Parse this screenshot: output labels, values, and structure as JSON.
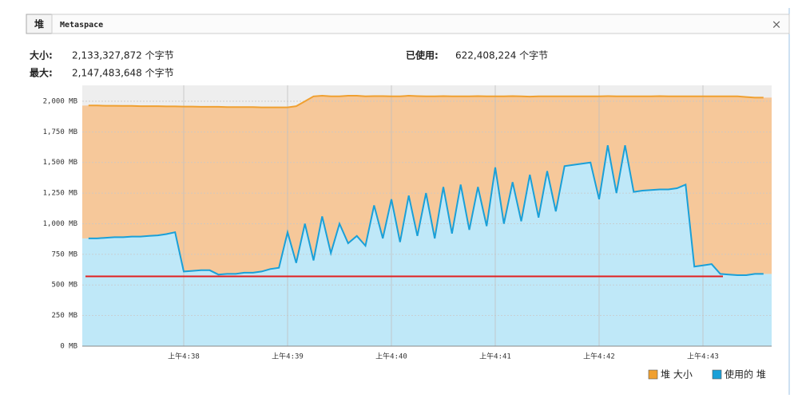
{
  "tabs": [
    "堆",
    "Metaspace"
  ],
  "close": "×",
  "info": {
    "size_label": "大小:",
    "size_value": "2,133,327,872 个字节",
    "max_label": "最大:",
    "max_value": "2,147,483,648 个字节",
    "used_label": "已使用:",
    "used_value": "622,408,224 个字节"
  },
  "chart_data": {
    "type": "area",
    "categories": [
      null,
      null,
      null,
      null,
      null,
      null,
      null,
      null,
      null,
      null,
      null,
      "上午4:38",
      null,
      null,
      null,
      null,
      null,
      null,
      null,
      null,
      null,
      null,
      null,
      "上午4:39",
      null,
      null,
      null,
      null,
      null,
      null,
      null,
      null,
      null,
      null,
      null,
      "上午4:40",
      null,
      null,
      null,
      null,
      null,
      null,
      null,
      null,
      null,
      null,
      null,
      "上午4:41",
      null,
      null,
      null,
      null,
      null,
      null,
      null,
      null,
      null,
      null,
      null,
      "上午4:42",
      null,
      null,
      null,
      null,
      null,
      null,
      null,
      null,
      null,
      null,
      null,
      "上午4:43",
      null,
      null,
      null,
      null,
      null,
      null,
      null
    ],
    "series": [
      {
        "name": "堆 大小",
        "color": "#f0a030",
        "fill": "#f6c89a",
        "values": [
          1965,
          1965,
          1963,
          1963,
          1962,
          1962,
          1960,
          1960,
          1960,
          1958,
          1958,
          1957,
          1957,
          1955,
          1955,
          1955,
          1953,
          1953,
          1952,
          1952,
          1950,
          1950,
          1950,
          1950,
          1960,
          2000,
          2040,
          2045,
          2040,
          2040,
          2045,
          2045,
          2040,
          2042,
          2042,
          2040,
          2040,
          2045,
          2042,
          2040,
          2040,
          2042,
          2040,
          2040,
          2040,
          2042,
          2040,
          2040,
          2040,
          2042,
          2040,
          2038,
          2040,
          2040,
          2040,
          2040,
          2040,
          2040,
          2040,
          2040,
          2042,
          2040,
          2040,
          2040,
          2040,
          2040,
          2042,
          2040,
          2040,
          2040,
          2040,
          2040,
          2040,
          2040,
          2040,
          2040,
          2035,
          2030,
          2030
        ]
      },
      {
        "name": "使用的 堆",
        "color": "#1aa0d8",
        "fill": "#bfe8f8",
        "values": [
          880,
          880,
          885,
          890,
          890,
          895,
          895,
          900,
          905,
          915,
          930,
          610,
          615,
          620,
          620,
          585,
          590,
          590,
          600,
          600,
          610,
          630,
          640,
          930,
          680,
          1000,
          700,
          1060,
          760,
          1000,
          840,
          900,
          820,
          1150,
          880,
          1200,
          850,
          1230,
          900,
          1250,
          880,
          1300,
          920,
          1320,
          950,
          1300,
          980,
          1460,
          1000,
          1340,
          1020,
          1400,
          1050,
          1430,
          1100,
          1470,
          1480,
          1490,
          1500,
          1200,
          1640,
          1250,
          1640,
          1260,
          1270,
          1275,
          1280,
          1280,
          1290,
          1320,
          650,
          660,
          670,
          590,
          585,
          580,
          580,
          590,
          590
        ]
      }
    ],
    "reference_line": {
      "value": 570,
      "color": "#e02020"
    },
    "ylim": [
      0,
      2130
    ],
    "yticks": [
      {
        "value": 0,
        "label": "0 MB"
      },
      {
        "value": 250,
        "label": "250 MB"
      },
      {
        "value": 500,
        "label": "500 MB"
      },
      {
        "value": 750,
        "label": "750 MB"
      },
      {
        "value": 1000,
        "label": "1,000 MB"
      },
      {
        "value": 1250,
        "label": "1,250 MB"
      },
      {
        "value": 1500,
        "label": "1,500 MB"
      },
      {
        "value": 1750,
        "label": "1,750 MB"
      },
      {
        "value": 2000,
        "label": "2,000 MB"
      }
    ],
    "grid": true,
    "legend": "bottom-right"
  }
}
